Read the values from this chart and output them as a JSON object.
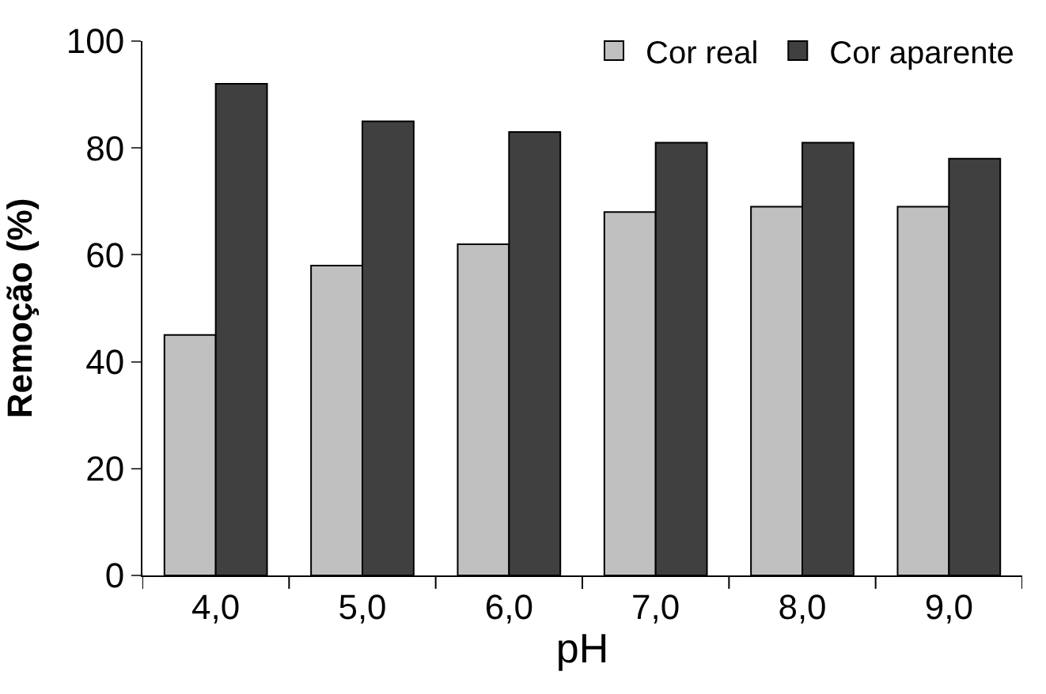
{
  "chart_data": {
    "type": "bar",
    "xlabel": "pH",
    "ylabel": "Remoção (%)",
    "categories": [
      "4,0",
      "5,0",
      "6,0",
      "7,0",
      "8,0",
      "9,0"
    ],
    "series": [
      {
        "name": "Cor real",
        "color": "#c0c0c0",
        "values": [
          45,
          58,
          62,
          68,
          69,
          69
        ]
      },
      {
        "name": "Cor aparente",
        "color": "#404040",
        "values": [
          92,
          85,
          83,
          81,
          81,
          78
        ]
      }
    ],
    "ylim": [
      0,
      100
    ],
    "yticks": [
      0,
      20,
      40,
      60,
      80,
      100
    ],
    "legend": "top right"
  }
}
